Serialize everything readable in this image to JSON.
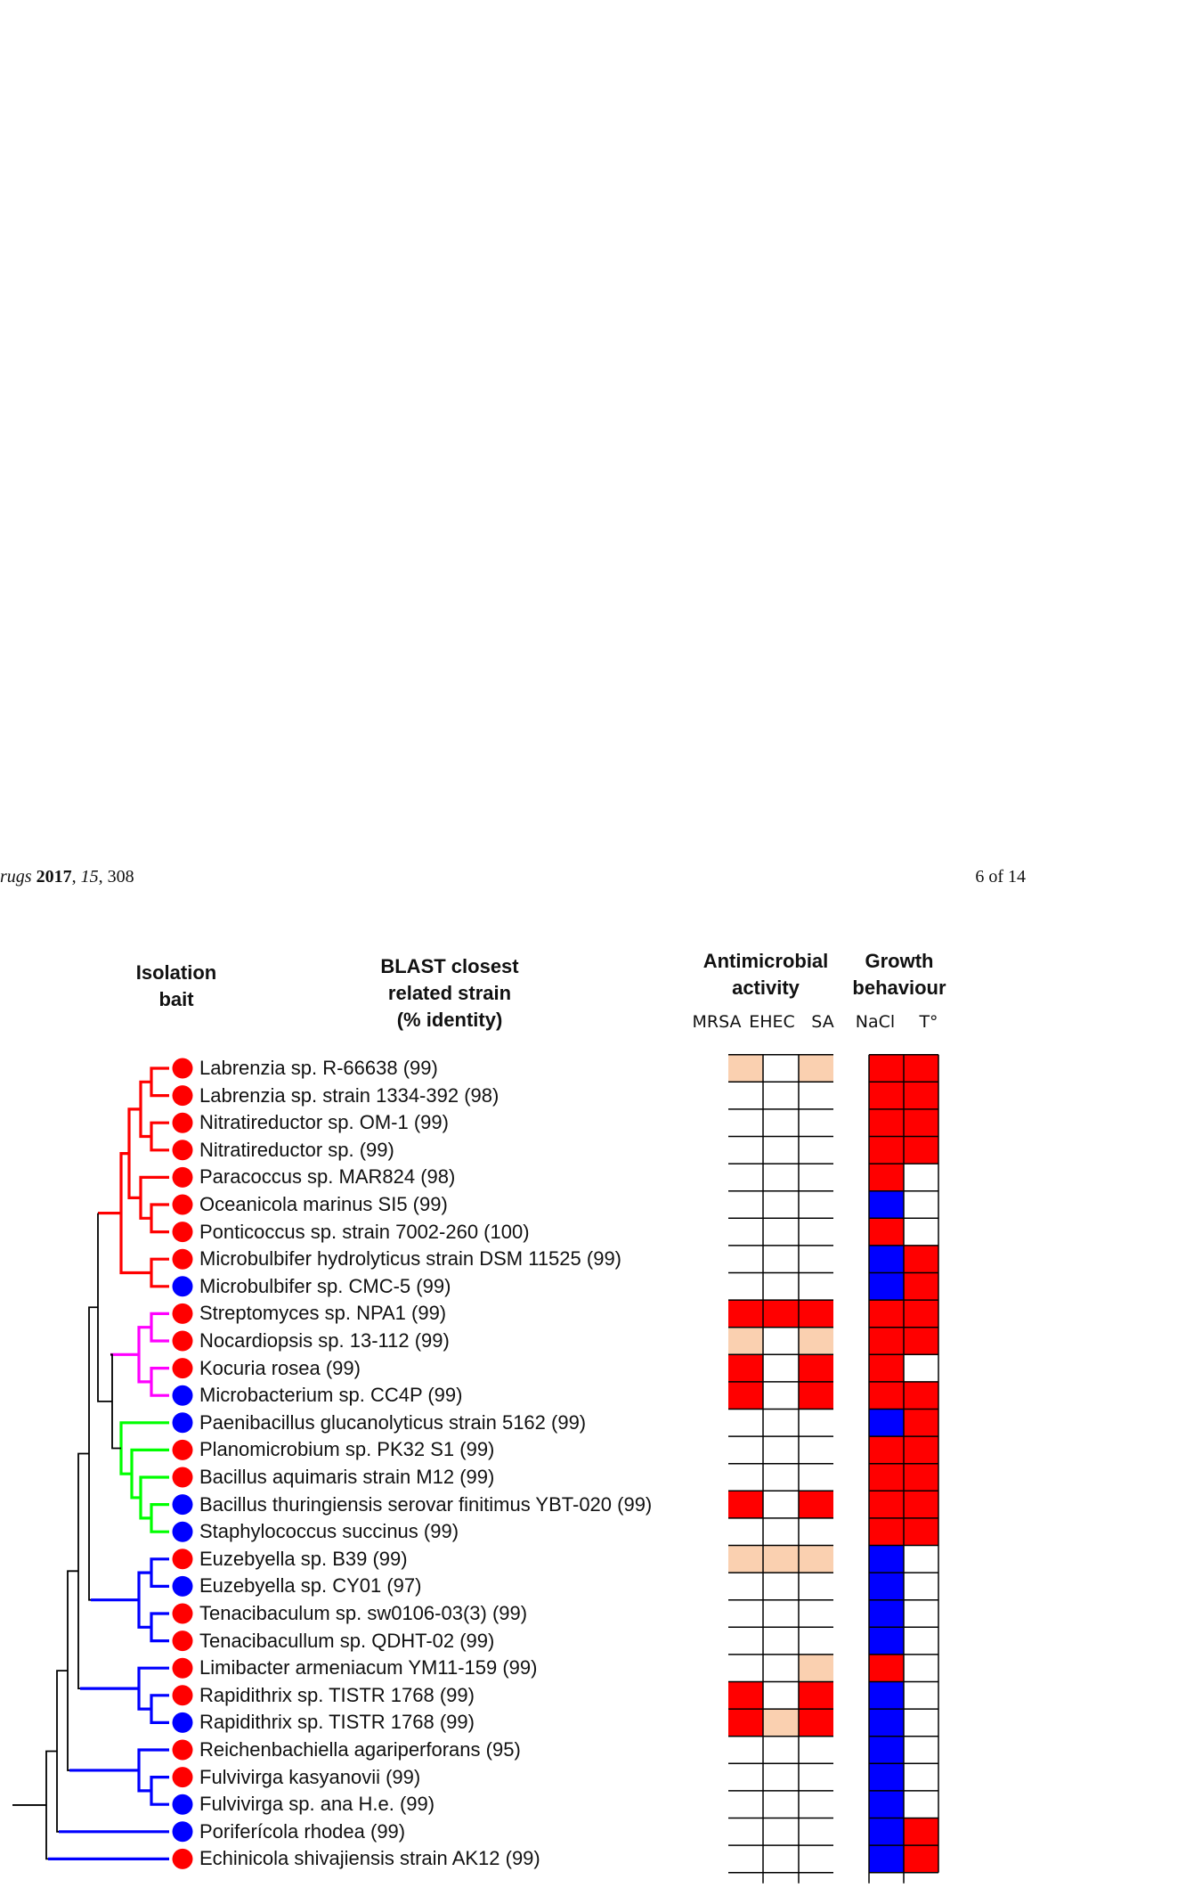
{
  "header": {
    "journal_fragment": "rugs",
    "year": "2017",
    "volume": "15",
    "article": "308",
    "page_label": "6 of 14"
  },
  "columns": {
    "isolation_bait": [
      "Isolation",
      "bait"
    ],
    "blast": [
      "BLAST closest",
      "related strain",
      "(% identity)"
    ],
    "antimicrobial": [
      "Antimicrobial",
      "activity"
    ],
    "growth": [
      "Growth",
      "behaviour"
    ],
    "sub": [
      "MRSA",
      "EHEC",
      "SA",
      "NaCl",
      "T°"
    ]
  },
  "colors": {
    "red": "#ff0000",
    "blue": "#0000ff",
    "light": "#fad0b0",
    "magenta": "#ff00ff",
    "green": "#00ff00",
    "clade_red": "#ff0000",
    "clade_blue": "#0000ff"
  },
  "rows": [
    {
      "label": "Labrenzia sp. R-66638 (99)",
      "bait": "red",
      "anti": [
        "light",
        "white",
        "light"
      ],
      "growth": [
        "red",
        "red"
      ]
    },
    {
      "label": "Labrenzia sp. strain 1334-392 (98)",
      "bait": "red",
      "anti": [
        "white",
        "white",
        "white"
      ],
      "growth": [
        "red",
        "red"
      ]
    },
    {
      "label": "Nitratireductor sp. OM-1 (99)",
      "bait": "red",
      "anti": [
        "white",
        "white",
        "white"
      ],
      "growth": [
        "red",
        "red"
      ]
    },
    {
      "label": "Nitratireductor sp. (99)",
      "bait": "red",
      "anti": [
        "white",
        "white",
        "white"
      ],
      "growth": [
        "red",
        "red"
      ]
    },
    {
      "label": "Paracoccus sp. MAR824 (98)",
      "bait": "red",
      "anti": [
        "white",
        "white",
        "white"
      ],
      "growth": [
        "red",
        "white"
      ]
    },
    {
      "label": "Oceanicola marinus SI5 (99)",
      "bait": "red",
      "anti": [
        "white",
        "white",
        "white"
      ],
      "growth": [
        "blue",
        "white"
      ]
    },
    {
      "label": "Ponticoccus sp. strain 7002-260 (100)",
      "bait": "red",
      "anti": [
        "white",
        "white",
        "white"
      ],
      "growth": [
        "red",
        "white"
      ]
    },
    {
      "label": "Microbulbifer hydrolyticus strain DSM 11525 (99)",
      "bait": "red",
      "anti": [
        "white",
        "white",
        "white"
      ],
      "growth": [
        "blue",
        "red"
      ]
    },
    {
      "label": "Microbulbifer sp. CMC-5 (99)",
      "bait": "blue",
      "anti": [
        "white",
        "white",
        "white"
      ],
      "growth": [
        "blue",
        "red"
      ]
    },
    {
      "label": "Streptomyces sp. NPA1 (99)",
      "bait": "red",
      "anti": [
        "red",
        "red",
        "red"
      ],
      "growth": [
        "red",
        "red"
      ]
    },
    {
      "label": "Nocardiopsis sp. 13-112 (99)",
      "bait": "red",
      "anti": [
        "light",
        "white",
        "light"
      ],
      "growth": [
        "red",
        "red"
      ]
    },
    {
      "label": "Kocuria rosea (99)",
      "bait": "red",
      "anti": [
        "red",
        "white",
        "red"
      ],
      "growth": [
        "red",
        "white"
      ]
    },
    {
      "label": "Microbacterium sp. CC4P (99)",
      "bait": "blue",
      "anti": [
        "red",
        "white",
        "red"
      ],
      "growth": [
        "red",
        "red"
      ]
    },
    {
      "label": "Paenibacillus glucanolyticus strain 5162 (99)",
      "bait": "blue",
      "anti": [
        "white",
        "white",
        "white"
      ],
      "growth": [
        "blue",
        "red"
      ]
    },
    {
      "label": "Planomicrobium sp. PK32 S1 (99)",
      "bait": "red",
      "anti": [
        "white",
        "white",
        "white"
      ],
      "growth": [
        "red",
        "red"
      ]
    },
    {
      "label": "Bacillus aquimaris strain M12 (99)",
      "bait": "red",
      "anti": [
        "white",
        "white",
        "white"
      ],
      "growth": [
        "red",
        "red"
      ]
    },
    {
      "label": "Bacillus thuringiensis serovar finitimus YBT-020 (99)",
      "bait": "blue",
      "anti": [
        "red",
        "white",
        "red"
      ],
      "growth": [
        "red",
        "red"
      ]
    },
    {
      "label": "Staphylococcus succinus (99)",
      "bait": "blue",
      "anti": [
        "white",
        "white",
        "white"
      ],
      "growth": [
        "red",
        "red"
      ]
    },
    {
      "label": "Euzebyella sp. B39 (99)",
      "bait": "red",
      "anti": [
        "light",
        "light",
        "light"
      ],
      "growth": [
        "blue",
        "white"
      ]
    },
    {
      "label": "Euzebyella sp. CY01 (97)",
      "bait": "blue",
      "anti": [
        "white",
        "white",
        "white"
      ],
      "growth": [
        "blue",
        "white"
      ]
    },
    {
      "label": "Tenacibaculum sp. sw0106-03(3) (99)",
      "bait": "red",
      "anti": [
        "white",
        "white",
        "white"
      ],
      "growth": [
        "blue",
        "white"
      ]
    },
    {
      "label": "Tenacibacullum sp. QDHT-02 (99)",
      "bait": "red",
      "anti": [
        "white",
        "white",
        "white"
      ],
      "growth": [
        "blue",
        "white"
      ]
    },
    {
      "label": "Limibacter armeniacum YM11-159 (99)",
      "bait": "red",
      "anti": [
        "white",
        "white",
        "light"
      ],
      "growth": [
        "red",
        "white"
      ]
    },
    {
      "label": "Rapidithrix sp. TISTR 1768 (99)",
      "bait": "red",
      "anti": [
        "red",
        "white",
        "red"
      ],
      "growth": [
        "blue",
        "white"
      ]
    },
    {
      "label": "Rapidithrix sp. TISTR 1768 (99)",
      "bait": "blue",
      "anti": [
        "red",
        "light",
        "red"
      ],
      "growth": [
        "blue",
        "white"
      ]
    },
    {
      "label": "Reichenbachiella agariperforans (95)",
      "bait": "red",
      "anti": [
        "white",
        "white",
        "white"
      ],
      "growth": [
        "blue",
        "white"
      ]
    },
    {
      "label": "Fulvivirga kasyanovii (99)",
      "bait": "red",
      "anti": [
        "white",
        "white",
        "white"
      ],
      "growth": [
        "blue",
        "white"
      ]
    },
    {
      "label": "Fulvivirga sp. ana H.e. (99)",
      "bait": "blue",
      "anti": [
        "white",
        "white",
        "white"
      ],
      "growth": [
        "blue",
        "white"
      ]
    },
    {
      "label": "Poriferícola rhodea (99)",
      "bait": "blue",
      "anti": [
        "white",
        "white",
        "white"
      ],
      "growth": [
        "blue",
        "red"
      ]
    },
    {
      "label": "Echinicola shivajiensis strain AK12 (99)",
      "bait": "red",
      "anti": [
        "white",
        "white",
        "white"
      ],
      "growth": [
        "blue",
        "red"
      ]
    }
  ]
}
